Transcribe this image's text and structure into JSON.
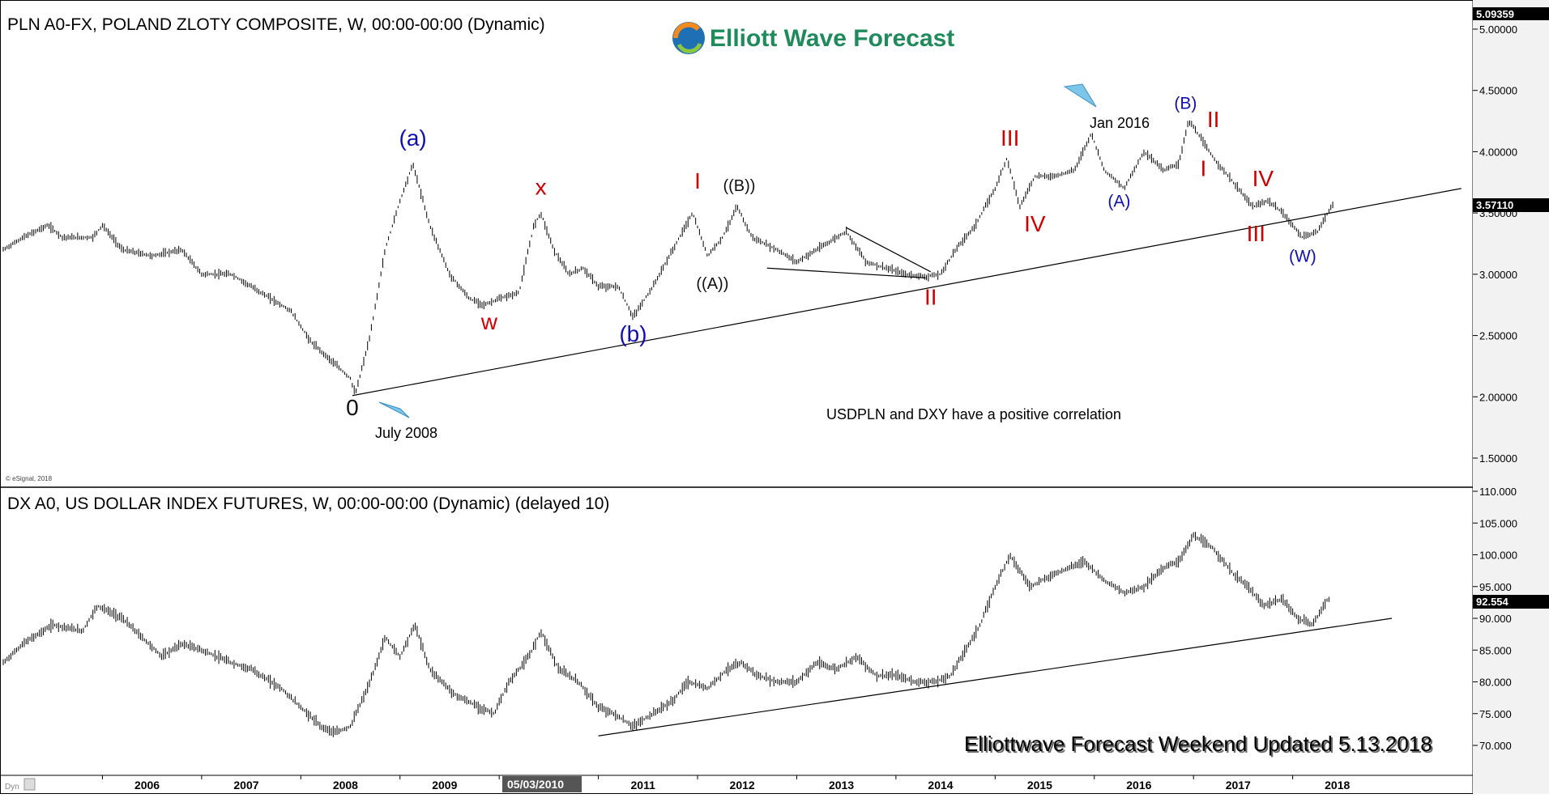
{
  "panel_top": {
    "title": "PLN A0-FX, POLAND ZLOTY COMPOSITE, W, 00:00-00:00 (Dynamic)",
    "copyright": "© eSignal, 2018",
    "last_value": "3.57110",
    "max_value": "5.09359"
  },
  "panel_bottom": {
    "title": "DX A0, US DOLLAR INDEX FUTURES, W, 00:00-00:00 (Dynamic) (delayed 10)",
    "last_value": "92.554"
  },
  "logo": {
    "text": "Elliott Wave Forecast"
  },
  "footer": {
    "note": "Elliottwave Forecast Weekend Updated 5.13.2018",
    "cursor_date": "05/03/2010",
    "corner_label": "Dyn"
  },
  "annotations": {
    "correlation": "USDPLN and DXY have a positive correlation",
    "july_2008": "July 2008",
    "jan_2016": "Jan 2016"
  },
  "chart_data": [
    {
      "type": "line",
      "series": [
        {
          "name": "",
          "x": [
            2005.0,
            2005.2,
            2005.45,
            2005.6,
            2005.9,
            2006.0,
            2006.2,
            2006.5,
            2006.8,
            2007.0,
            2007.3,
            2007.6,
            2007.9,
            2008.1,
            2008.3,
            2008.5,
            2008.55,
            2008.7,
            2008.85,
            2009.0,
            2009.13,
            2009.3,
            2009.5,
            2009.7,
            2009.85,
            2010.0,
            2010.2,
            2010.35,
            2010.42,
            2010.55,
            2010.7,
            2010.85,
            2011.0,
            2011.2,
            2011.35,
            2011.55,
            2011.75,
            2011.95,
            2012.1,
            2012.25,
            2012.4,
            2012.55,
            2012.8,
            2013.0,
            2013.2,
            2013.4,
            2013.5,
            2013.7,
            2013.9,
            2014.1,
            2014.3,
            2014.45,
            2014.6,
            2014.8,
            2015.0,
            2015.12,
            2015.25,
            2015.4,
            2015.6,
            2015.8,
            2015.97,
            2016.1,
            2016.3,
            2016.5,
            2016.7,
            2016.85,
            2016.95,
            2017.0,
            2017.2,
            2017.4,
            2017.6,
            2017.75,
            2017.9,
            2018.1,
            2018.25,
            2018.4
          ],
          "y": [
            3.2,
            3.3,
            3.4,
            3.3,
            3.3,
            3.4,
            3.2,
            3.15,
            3.2,
            3.0,
            3.0,
            2.85,
            2.7,
            2.45,
            2.3,
            2.15,
            2.02,
            2.5,
            3.2,
            3.6,
            3.9,
            3.4,
            3.0,
            2.8,
            2.75,
            2.8,
            2.85,
            3.4,
            3.5,
            3.2,
            3.0,
            3.05,
            2.9,
            2.9,
            2.65,
            2.9,
            3.2,
            3.5,
            3.15,
            3.3,
            3.55,
            3.3,
            3.2,
            3.1,
            3.2,
            3.3,
            3.35,
            3.1,
            3.05,
            3.0,
            2.98,
            3.0,
            3.2,
            3.4,
            3.7,
            3.95,
            3.55,
            3.8,
            3.8,
            3.85,
            4.15,
            3.85,
            3.7,
            4.0,
            3.85,
            3.9,
            4.25,
            4.2,
            3.95,
            3.75,
            3.55,
            3.6,
            3.5,
            3.3,
            3.35,
            3.57
          ]
        }
      ],
      "ylim": [
        1.3,
        5.1
      ],
      "xlim": [
        2005.0,
        2019.8
      ],
      "y_ticks": [
        "5.00000",
        "4.50000",
        "4.00000",
        "3.50000",
        "3.00000",
        "2.50000",
        "2.00000",
        "1.50000"
      ],
      "y_tick_values": [
        5.0,
        4.5,
        4.0,
        3.5,
        3.0,
        2.5,
        2.0,
        1.5
      ],
      "wave_labels": [
        {
          "text": "(a)",
          "x": 2009.13,
          "y": 4.05,
          "color": "#1010b0"
        },
        {
          "text": "x",
          "x": 2010.42,
          "y": 3.65,
          "color": "#d00000"
        },
        {
          "text": "w",
          "x": 2009.9,
          "y": 2.55,
          "color": "#d00000"
        },
        {
          "text": "(b)",
          "x": 2011.35,
          "y": 2.45,
          "color": "#1010b0"
        },
        {
          "text": "I",
          "x": 2012.0,
          "y": 3.7,
          "color": "#d00000"
        },
        {
          "text": "((B))",
          "x": 2012.42,
          "y": 3.68,
          "color": "#111111"
        },
        {
          "text": "((A))",
          "x": 2012.15,
          "y": 2.88,
          "color": "#111111"
        },
        {
          "text": "II",
          "x": 2014.35,
          "y": 2.75,
          "color": "#d00000"
        },
        {
          "text": "III",
          "x": 2015.15,
          "y": 4.05,
          "color": "#d00000"
        },
        {
          "text": "IV",
          "x": 2015.4,
          "y": 3.35,
          "color": "#d00000"
        },
        {
          "text": "(A)",
          "x": 2016.25,
          "y": 3.55,
          "color": "#1010b0"
        },
        {
          "text": "(B)",
          "x": 2016.92,
          "y": 4.35,
          "color": "#1010b0"
        },
        {
          "text": "II",
          "x": 2017.2,
          "y": 4.2,
          "color": "#d00000"
        },
        {
          "text": "I",
          "x": 2017.1,
          "y": 3.8,
          "color": "#d00000"
        },
        {
          "text": "IV",
          "x": 2017.7,
          "y": 3.72,
          "color": "#d00000"
        },
        {
          "text": "III",
          "x": 2017.63,
          "y": 3.27,
          "color": "#d00000"
        },
        {
          "text": "(W)",
          "x": 2018.1,
          "y": 3.1,
          "color": "#1010b0"
        },
        {
          "text": "0",
          "x": 2008.52,
          "y": 1.85,
          "color": "#111111"
        }
      ],
      "trendlines": [
        {
          "x1": 2008.52,
          "y1": 2.01,
          "x2": 2019.7,
          "y2": 3.7
        },
        {
          "x1": 2012.7,
          "y1": 3.05,
          "x2": 2014.3,
          "y2": 2.97
        },
        {
          "x1": 2013.5,
          "y1": 3.38,
          "x2": 2014.35,
          "y2": 3.02
        }
      ]
    },
    {
      "type": "line",
      "series": [
        {
          "name": "",
          "x": [
            2005.0,
            2005.2,
            2005.5,
            2005.8,
            2005.95,
            2006.2,
            2006.4,
            2006.6,
            2006.8,
            2007.0,
            2007.3,
            2007.5,
            2007.8,
            2008.0,
            2008.2,
            2008.35,
            2008.5,
            2008.7,
            2008.85,
            2009.0,
            2009.15,
            2009.3,
            2009.55,
            2009.8,
            2009.95,
            2010.1,
            2010.3,
            2010.42,
            2010.6,
            2010.8,
            2011.0,
            2011.15,
            2011.35,
            2011.55,
            2011.75,
            2011.9,
            2012.1,
            2012.3,
            2012.45,
            2012.6,
            2012.8,
            2013.0,
            2013.2,
            2013.4,
            2013.6,
            2013.8,
            2014.0,
            2014.2,
            2014.4,
            2014.55,
            2014.7,
            2014.85,
            2015.0,
            2015.15,
            2015.35,
            2015.6,
            2015.9,
            2016.1,
            2016.3,
            2016.5,
            2016.7,
            2016.85,
            2017.0,
            2017.2,
            2017.4,
            2017.55,
            2017.7,
            2017.9,
            2018.05,
            2018.2,
            2018.35
          ],
          "y": [
            83,
            86,
            89,
            88,
            92,
            90,
            87,
            84,
            86,
            85,
            83,
            82,
            79,
            76,
            73,
            72,
            73,
            80,
            87,
            84,
            89,
            82,
            78,
            76,
            75,
            80,
            84,
            88,
            82,
            80,
            76,
            75,
            73,
            75,
            77,
            80,
            79,
            82,
            83,
            81,
            80,
            80,
            83,
            82,
            84,
            81,
            81,
            80,
            80,
            81,
            85,
            89,
            95,
            100,
            95,
            97,
            99,
            96,
            94,
            95,
            98,
            99,
            103,
            101,
            97,
            95,
            92,
            93,
            90,
            89,
            93
          ]
        }
      ],
      "ylim": [
        67,
        111
      ],
      "xlim": [
        2005.0,
        2019.8
      ],
      "y_ticks": [
        "110.000",
        "105.000",
        "100.000",
        "95.000",
        "90.000",
        "85.000",
        "80.000",
        "75.000",
        "70.000"
      ],
      "y_tick_values": [
        110,
        105,
        100,
        95,
        90,
        85,
        80,
        75,
        70
      ],
      "x_ticks": [
        "2006",
        "2007",
        "2008",
        "2009",
        "2010",
        "2011",
        "2012",
        "2013",
        "2014",
        "2015",
        "2016",
        "2017",
        "2018"
      ],
      "x_tick_values": [
        2006,
        2007,
        2008,
        2009,
        2010,
        2011,
        2012,
        2013,
        2014,
        2015,
        2016,
        2017,
        2018
      ],
      "trendlines": [
        {
          "x1": 2011.0,
          "y1": 71.5,
          "x2": 2019.0,
          "y2": 90.0
        }
      ]
    }
  ]
}
